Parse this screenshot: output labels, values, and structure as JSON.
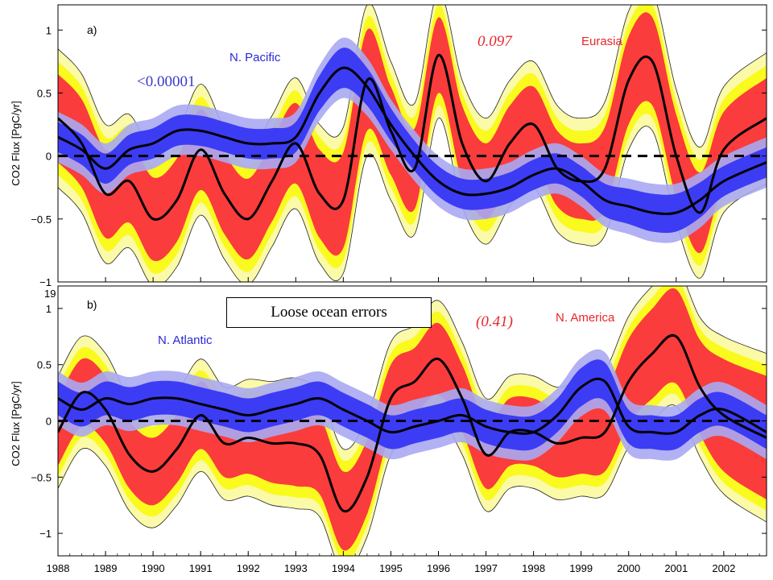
{
  "colors": {
    "land_outer": "#fafaa8",
    "land_mid": "#fafa1e",
    "land_inner": "#fa3c3c",
    "ocean_outer": "#a8a8f2",
    "ocean_inner": "#3c3cf5",
    "mean_line": "#000000",
    "ocean_text": "#2a2ad6",
    "land_text": "#e8262a",
    "stat_ocean": "#3a3ac8",
    "stat_land": "#e8262a"
  },
  "note": "Loose ocean errors",
  "chart_data": [
    {
      "type": "area",
      "panel_label": "a)",
      "ylabel": "CO2 Flux [PgC/yr]",
      "ylim": [
        -1,
        1.2
      ],
      "yticks": [
        "1",
        "0.5",
        "0",
        "−0.5",
        "−1"
      ],
      "ytick_values": [
        1,
        0.5,
        0,
        -0.5,
        -1
      ],
      "xlim": [
        1988,
        2002.9
      ],
      "xticks": [],
      "partial_tick": "19",
      "zero_line": "dashed",
      "ocean": {
        "name": "N. Pacific",
        "stat": "<0.00001",
        "x": [
          1988,
          1988.5,
          1989,
          1989.5,
          1990,
          1990.5,
          1991,
          1991.5,
          1992,
          1992.5,
          1993,
          1993.5,
          1994,
          1994.5,
          1995,
          1995.5,
          1996,
          1996.5,
          1997,
          1997.5,
          1998,
          1998.5,
          1999,
          1999.5,
          2000,
          2000.5,
          2001,
          2001.5,
          2002,
          2002.9
        ],
        "mean": [
          0.15,
          0.05,
          -0.1,
          0.05,
          0.1,
          0.2,
          0.2,
          0.15,
          0.1,
          0.1,
          0.15,
          0.5,
          0.7,
          0.55,
          0.25,
          0,
          -0.2,
          -0.3,
          -0.3,
          -0.25,
          -0.15,
          -0.1,
          -0.2,
          -0.35,
          -0.4,
          -0.45,
          -0.45,
          -0.35,
          -0.2,
          -0.05
        ],
        "inner_half": [
          0.12,
          0.12,
          0.12,
          0.12,
          0.12,
          0.12,
          0.12,
          0.12,
          0.12,
          0.12,
          0.12,
          0.14,
          0.16,
          0.15,
          0.13,
          0.12,
          0.12,
          0.12,
          0.12,
          0.12,
          0.12,
          0.12,
          0.12,
          0.13,
          0.14,
          0.15,
          0.15,
          0.14,
          0.12,
          0.12
        ],
        "outer_half": [
          0.2,
          0.2,
          0.2,
          0.2,
          0.2,
          0.2,
          0.2,
          0.2,
          0.2,
          0.2,
          0.2,
          0.22,
          0.24,
          0.23,
          0.2,
          0.2,
          0.2,
          0.2,
          0.2,
          0.2,
          0.2,
          0.2,
          0.2,
          0.21,
          0.22,
          0.23,
          0.23,
          0.22,
          0.2,
          0.2
        ]
      },
      "land": {
        "name": "Eurasia",
        "stat": "0.097",
        "x": [
          1988,
          1988.5,
          1989,
          1989.5,
          1990,
          1990.5,
          1991,
          1991.5,
          1992,
          1992.5,
          1993,
          1993.5,
          1994,
          1994.5,
          1995,
          1995.5,
          1996,
          1996.5,
          1997,
          1997.5,
          1998,
          1998.5,
          1999,
          1999.5,
          2000,
          2000.5,
          2001,
          2001.5,
          2002,
          2002.9
        ],
        "mean": [
          0.3,
          0.1,
          -0.3,
          -0.2,
          -0.5,
          -0.35,
          0.05,
          -0.3,
          -0.5,
          -0.2,
          0.1,
          -0.3,
          -0.35,
          0.6,
          0.2,
          -0.1,
          0.8,
          0.1,
          -0.2,
          0.1,
          0.25,
          -0.1,
          -0.2,
          -0.1,
          0.6,
          0.75,
          0,
          -0.45,
          0.05,
          0.3
        ],
        "red_half": [
          0.35,
          0.35,
          0.35,
          0.33,
          0.33,
          0.33,
          0.32,
          0.32,
          0.32,
          0.32,
          0.32,
          0.35,
          0.38,
          0.4,
          0.35,
          0.32,
          0.3,
          0.3,
          0.3,
          0.3,
          0.3,
          0.3,
          0.3,
          0.33,
          0.35,
          0.35,
          0.33,
          0.32,
          0.3,
          0.32
        ],
        "yellow_half": [
          0.45,
          0.45,
          0.45,
          0.43,
          0.43,
          0.43,
          0.42,
          0.42,
          0.42,
          0.42,
          0.42,
          0.45,
          0.48,
          0.5,
          0.45,
          0.42,
          0.4,
          0.4,
          0.4,
          0.4,
          0.4,
          0.4,
          0.4,
          0.43,
          0.45,
          0.45,
          0.43,
          0.42,
          0.4,
          0.42
        ],
        "outer_half": [
          0.55,
          0.55,
          0.55,
          0.53,
          0.53,
          0.53,
          0.52,
          0.52,
          0.52,
          0.52,
          0.52,
          0.55,
          0.58,
          0.6,
          0.55,
          0.52,
          0.5,
          0.5,
          0.5,
          0.5,
          0.5,
          0.5,
          0.5,
          0.53,
          0.55,
          0.55,
          0.53,
          0.52,
          0.5,
          0.52
        ]
      }
    },
    {
      "type": "area",
      "panel_label": "b)",
      "ylabel": "CO2 Flux [PgC/yr]",
      "ylim": [
        -1.2,
        1.2
      ],
      "yticks": [
        "1",
        "0.5",
        "0",
        "−0.5",
        "−1"
      ],
      "ytick_values": [
        1,
        0.5,
        0,
        -0.5,
        -1
      ],
      "xlim": [
        1988,
        2002.9
      ],
      "xticks": [
        "1988",
        "1989",
        "1990",
        "1991",
        "1992",
        "1993",
        "1994",
        "1995",
        "1996",
        "1997",
        "1998",
        "1999",
        "2000",
        "2001",
        "2002"
      ],
      "xtick_values": [
        1988,
        1989,
        1990,
        1991,
        1992,
        1993,
        1994,
        1995,
        1996,
        1997,
        1998,
        1999,
        2000,
        2001,
        2002
      ],
      "zero_line": "dashed",
      "ocean": {
        "name": "N. Atlantic",
        "x": [
          1988,
          1988.5,
          1989,
          1989.5,
          1990,
          1990.5,
          1991,
          1991.5,
          1992,
          1992.5,
          1993,
          1993.5,
          1994,
          1994.5,
          1995,
          1995.5,
          1996,
          1996.5,
          1997,
          1997.5,
          1998,
          1998.5,
          1999,
          1999.5,
          2000,
          2000.5,
          2001,
          2001.5,
          2002,
          2002.9
        ],
        "mean": [
          0.2,
          0.1,
          0.2,
          0.15,
          0.2,
          0.2,
          0.15,
          0.1,
          0.05,
          0.1,
          0.15,
          0.2,
          0.1,
          0,
          -0.1,
          -0.05,
          0,
          0.05,
          -0.05,
          -0.1,
          -0.1,
          0.05,
          0.3,
          0.35,
          -0.05,
          -0.1,
          -0.1,
          0.05,
          0.1,
          -0.1
        ],
        "inner_half": [
          0.15,
          0.15,
          0.15,
          0.15,
          0.15,
          0.15,
          0.15,
          0.15,
          0.15,
          0.15,
          0.15,
          0.15,
          0.15,
          0.15,
          0.15,
          0.15,
          0.15,
          0.15,
          0.15,
          0.15,
          0.15,
          0.15,
          0.17,
          0.17,
          0.15,
          0.15,
          0.15,
          0.15,
          0.15,
          0.15
        ],
        "outer_half": [
          0.24,
          0.24,
          0.24,
          0.24,
          0.24,
          0.24,
          0.24,
          0.24,
          0.24,
          0.24,
          0.24,
          0.24,
          0.24,
          0.24,
          0.24,
          0.24,
          0.24,
          0.24,
          0.24,
          0.24,
          0.24,
          0.24,
          0.26,
          0.26,
          0.24,
          0.24,
          0.24,
          0.24,
          0.24,
          0.24
        ]
      },
      "land": {
        "name": "N. America",
        "stat": "(0.41)",
        "x": [
          1988,
          1988.5,
          1989,
          1989.5,
          1990,
          1990.5,
          1991,
          1991.5,
          1992,
          1992.5,
          1993,
          1993.5,
          1994,
          1994.5,
          1995,
          1995.5,
          1996,
          1996.5,
          1997,
          1997.5,
          1998,
          1998.5,
          1999,
          1999.5,
          2000,
          2000.5,
          2001,
          2001.5,
          2002,
          2002.9
        ],
        "mean": [
          -0.1,
          0.25,
          0.1,
          -0.3,
          -0.45,
          -0.25,
          0.05,
          -0.2,
          -0.15,
          -0.2,
          -0.2,
          -0.3,
          -0.8,
          -0.5,
          0.2,
          0.35,
          0.55,
          0.2,
          -0.3,
          -0.1,
          -0.1,
          -0.2,
          -0.15,
          -0.1,
          0.35,
          0.6,
          0.75,
          0.3,
          0.05,
          -0.15
        ],
        "red_half": [
          0.3,
          0.3,
          0.3,
          0.3,
          0.3,
          0.3,
          0.3,
          0.3,
          0.32,
          0.35,
          0.38,
          0.35,
          0.35,
          0.33,
          0.3,
          0.3,
          0.32,
          0.3,
          0.3,
          0.3,
          0.3,
          0.3,
          0.32,
          0.35,
          0.38,
          0.4,
          0.42,
          0.42,
          0.5,
          0.55
        ],
        "yellow_half": [
          0.4,
          0.4,
          0.4,
          0.4,
          0.4,
          0.4,
          0.4,
          0.4,
          0.42,
          0.45,
          0.48,
          0.45,
          0.45,
          0.43,
          0.4,
          0.4,
          0.42,
          0.4,
          0.4,
          0.4,
          0.4,
          0.4,
          0.42,
          0.45,
          0.48,
          0.5,
          0.52,
          0.52,
          0.6,
          0.65
        ],
        "outer_half": [
          0.5,
          0.5,
          0.5,
          0.5,
          0.5,
          0.5,
          0.5,
          0.5,
          0.52,
          0.55,
          0.58,
          0.55,
          0.55,
          0.53,
          0.5,
          0.5,
          0.52,
          0.5,
          0.5,
          0.5,
          0.5,
          0.5,
          0.52,
          0.55,
          0.58,
          0.6,
          0.62,
          0.62,
          0.7,
          0.75
        ]
      }
    }
  ]
}
